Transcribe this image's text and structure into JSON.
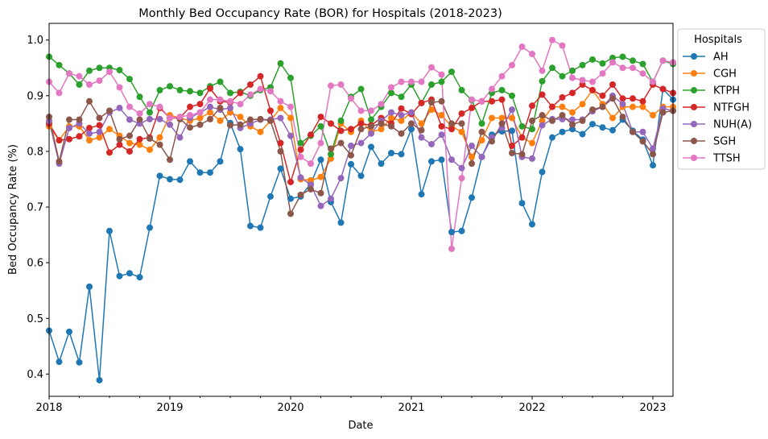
{
  "chart_data": {
    "type": "line",
    "title": "Monthly Bed Occupancy Rate (BOR) for Hospitals (2018-2023)",
    "xlabel": "Date",
    "ylabel": "Bed Occupancy Rate (%)",
    "x_start": "2018-01",
    "x_tick_labels": [
      "2018",
      "2019",
      "2020",
      "2021",
      "2022",
      "2023"
    ],
    "xlim": [
      "2018-01",
      "2023-03"
    ],
    "ylim": [
      0.36,
      1.03
    ],
    "y_ticks": [
      0.4,
      0.5,
      0.6,
      0.7,
      0.8,
      0.9,
      1.0
    ],
    "y_tick_labels": [
      "0.4",
      "0.5",
      "0.6",
      "0.7",
      "0.8",
      "0.9",
      "1.0"
    ],
    "grid": false,
    "marker": "circle",
    "legend": {
      "title": "Hospitals",
      "placement": "outside-top-right"
    },
    "series": [
      {
        "name": "AH",
        "color": "#1f77b4",
        "values": [
          0.478,
          0.422,
          0.476,
          0.421,
          0.557,
          0.389,
          0.657,
          0.576,
          0.581,
          0.574,
          0.663,
          0.756,
          0.75,
          0.749,
          0.782,
          0.762,
          0.762,
          0.782,
          0.851,
          0.804,
          0.666,
          0.663,
          0.719,
          0.769,
          0.715,
          0.719,
          0.742,
          0.785,
          0.709,
          0.672,
          0.777,
          0.756,
          0.808,
          0.778,
          0.797,
          0.795,
          0.84,
          0.723,
          0.782,
          0.785,
          0.655,
          0.657,
          0.717,
          0.79,
          0.83,
          0.836,
          0.837,
          0.707,
          0.669,
          0.763,
          0.825,
          0.835,
          0.84,
          0.831,
          0.849,
          0.843,
          0.838,
          0.857,
          0.837,
          0.821,
          0.775,
          0.912,
          0.893
        ]
      },
      {
        "name": "CGH",
        "color": "#ff7f0e",
        "values": [
          0.845,
          0.82,
          0.845,
          0.845,
          0.82,
          0.825,
          0.84,
          0.828,
          0.815,
          0.812,
          0.803,
          0.825,
          0.865,
          0.86,
          0.855,
          0.86,
          0.87,
          0.855,
          0.87,
          0.862,
          0.845,
          0.835,
          0.855,
          0.878,
          0.86,
          0.75,
          0.748,
          0.754,
          0.787,
          0.85,
          0.835,
          0.855,
          0.835,
          0.84,
          0.86,
          0.855,
          0.87,
          0.85,
          0.875,
          0.865,
          0.845,
          0.835,
          0.79,
          0.82,
          0.86,
          0.86,
          0.86,
          0.825,
          0.815,
          0.855,
          0.88,
          0.88,
          0.87,
          0.885,
          0.91,
          0.885,
          0.86,
          0.88,
          0.88,
          0.88,
          0.865,
          0.88,
          0.88
        ]
      },
      {
        "name": "KTPH",
        "color": "#2ca02c",
        "values": [
          0.97,
          0.955,
          0.94,
          0.92,
          0.945,
          0.95,
          0.95,
          0.946,
          0.93,
          0.898,
          0.87,
          0.91,
          0.917,
          0.91,
          0.908,
          0.905,
          0.917,
          0.925,
          0.905,
          0.907,
          0.9,
          0.91,
          0.915,
          0.958,
          0.932,
          0.815,
          0.828,
          0.845,
          0.795,
          0.855,
          0.898,
          0.912,
          0.857,
          0.88,
          0.905,
          0.898,
          0.92,
          0.887,
          0.92,
          0.925,
          0.943,
          0.91,
          0.892,
          0.85,
          0.905,
          0.91,
          0.9,
          0.845,
          0.84,
          0.926,
          0.95,
          0.935,
          0.945,
          0.955,
          0.965,
          0.958,
          0.968,
          0.97,
          0.963,
          0.957,
          0.925,
          0.963,
          0.957
        ]
      },
      {
        "name": "NTFGH",
        "color": "#d62728",
        "values": [
          0.85,
          0.82,
          0.822,
          0.827,
          0.842,
          0.847,
          0.798,
          0.812,
          0.8,
          0.822,
          0.825,
          0.878,
          0.86,
          0.86,
          0.88,
          0.885,
          0.913,
          0.89,
          0.888,
          0.905,
          0.92,
          0.935,
          0.873,
          0.815,
          0.745,
          0.803,
          0.83,
          0.862,
          0.85,
          0.837,
          0.84,
          0.85,
          0.847,
          0.86,
          0.85,
          0.877,
          0.867,
          0.887,
          0.893,
          0.845,
          0.84,
          0.868,
          0.878,
          0.89,
          0.89,
          0.893,
          0.81,
          0.825,
          0.882,
          0.902,
          0.88,
          0.897,
          0.905,
          0.92,
          0.91,
          0.9,
          0.92,
          0.895,
          0.895,
          0.89,
          0.92,
          0.912,
          0.905
        ]
      },
      {
        "name": "NUH(A)",
        "color": "#9467bd",
        "values": [
          0.855,
          0.778,
          0.842,
          0.85,
          0.832,
          0.835,
          0.87,
          0.878,
          0.857,
          0.85,
          0.858,
          0.858,
          0.848,
          0.825,
          0.86,
          0.87,
          0.88,
          0.875,
          0.878,
          0.842,
          0.85,
          0.857,
          0.857,
          0.86,
          0.828,
          0.753,
          0.74,
          0.702,
          0.715,
          0.752,
          0.81,
          0.815,
          0.832,
          0.855,
          0.87,
          0.865,
          0.87,
          0.825,
          0.813,
          0.83,
          0.785,
          0.77,
          0.81,
          0.79,
          0.825,
          0.842,
          0.875,
          0.79,
          0.787,
          0.847,
          0.858,
          0.858,
          0.857,
          0.857,
          0.872,
          0.88,
          0.9,
          0.885,
          0.835,
          0.835,
          0.805,
          0.877,
          0.873
        ]
      },
      {
        "name": "SGH",
        "color": "#8c564b",
        "values": [
          0.862,
          0.782,
          0.857,
          0.857,
          0.89,
          0.86,
          0.873,
          0.822,
          0.828,
          0.857,
          0.823,
          0.812,
          0.785,
          0.858,
          0.843,
          0.848,
          0.858,
          0.878,
          0.847,
          0.848,
          0.857,
          0.858,
          0.855,
          0.8,
          0.688,
          0.722,
          0.732,
          0.725,
          0.805,
          0.815,
          0.793,
          0.84,
          0.845,
          0.85,
          0.845,
          0.832,
          0.85,
          0.838,
          0.888,
          0.89,
          0.85,
          0.85,
          0.778,
          0.835,
          0.818,
          0.85,
          0.797,
          0.795,
          0.855,
          0.865,
          0.855,
          0.865,
          0.848,
          0.855,
          0.875,
          0.88,
          0.895,
          0.862,
          0.835,
          0.818,
          0.795,
          0.87,
          0.873
        ]
      },
      {
        "name": "TTSH",
        "color": "#e377c2",
        "values": [
          0.925,
          0.905,
          0.94,
          0.935,
          0.92,
          0.927,
          0.943,
          0.915,
          0.88,
          0.868,
          0.885,
          0.88,
          0.86,
          0.862,
          0.865,
          0.87,
          0.893,
          0.893,
          0.89,
          0.885,
          0.902,
          0.912,
          0.908,
          0.89,
          0.88,
          0.79,
          0.778,
          0.815,
          0.918,
          0.92,
          0.895,
          0.873,
          0.873,
          0.885,
          0.915,
          0.925,
          0.925,
          0.925,
          0.951,
          0.938,
          0.625,
          0.752,
          0.893,
          0.89,
          0.912,
          0.935,
          0.955,
          0.988,
          0.975,
          0.945,
          1.0,
          0.99,
          0.932,
          0.928,
          0.925,
          0.94,
          0.96,
          0.95,
          0.95,
          0.94,
          0.925,
          0.963,
          0.96
        ]
      }
    ]
  }
}
